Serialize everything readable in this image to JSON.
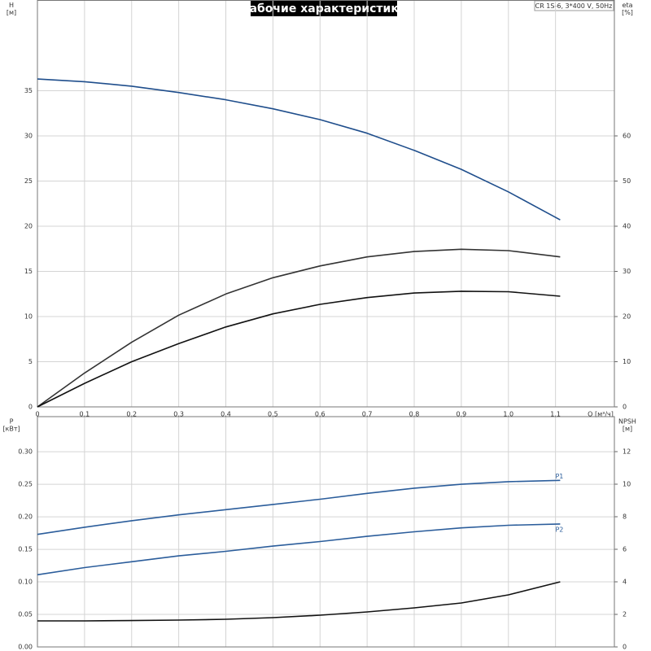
{
  "chart_data": [
    {
      "type": "line",
      "title": "Рабочие характеристики",
      "subtitle": "CR 1S-6, 3*400 V, 50Hz",
      "xlabel": "Q [м³/ч]",
      "ylabel": "H",
      "ylabel_unit": "[м]",
      "y2label": "eta",
      "y2label_unit": "[%]",
      "xlim": [
        0,
        1.225
      ],
      "xticks": [
        {
          "value": 0,
          "label": "0"
        },
        {
          "value": 0.1,
          "label": "0,1"
        },
        {
          "value": 0.2,
          "label": "0,2"
        },
        {
          "value": 0.3,
          "label": "0,3"
        },
        {
          "value": 0.4,
          "label": "0,4"
        },
        {
          "value": 0.5,
          "label": "0,5"
        },
        {
          "value": 0.6,
          "label": "0,6"
        },
        {
          "value": 0.7,
          "label": "0,7"
        },
        {
          "value": 0.8,
          "label": "0,8"
        },
        {
          "value": 0.9,
          "label": "0,9"
        },
        {
          "value": 1.0,
          "label": "1,0"
        },
        {
          "value": 1.1,
          "label": "1,1"
        }
      ],
      "ylim": [
        0,
        45
      ],
      "yticks": [
        0,
        5,
        10,
        15,
        20,
        25,
        30,
        35
      ],
      "y2lim": [
        0,
        90
      ],
      "y2ticks": [
        0,
        10,
        20,
        30,
        40,
        50,
        60
      ],
      "grid": true,
      "series": [
        {
          "color": "#1f4e8c",
          "axis": "y",
          "x": [
            0,
            0.1,
            0.2,
            0.3,
            0.4,
            0.5,
            0.6,
            0.7,
            0.8,
            0.9,
            1.0,
            1.11
          ],
          "values": [
            36.3,
            36.0,
            35.5,
            34.8,
            34.0,
            33.0,
            31.8,
            30.3,
            28.4,
            26.3,
            23.8,
            20.7
          ]
        },
        {
          "color": "#333333",
          "axis": "y2",
          "x": [
            0,
            0.1,
            0.2,
            0.3,
            0.4,
            0.5,
            0.6,
            0.7,
            0.8,
            0.9,
            1.0,
            1.11
          ],
          "values": [
            0,
            7.5,
            14.3,
            20.3,
            25,
            28.6,
            31.2,
            33.2,
            34.4,
            34.9,
            34.6,
            33.2
          ]
        },
        {
          "color": "#111111",
          "axis": "y2",
          "x": [
            0,
            0.1,
            0.2,
            0.3,
            0.4,
            0.5,
            0.6,
            0.7,
            0.8,
            0.9,
            1.0,
            1.11
          ],
          "values": [
            0,
            5.2,
            10,
            14,
            17.7,
            20.6,
            22.7,
            24.2,
            25.2,
            25.6,
            25.5,
            24.5
          ]
        }
      ]
    },
    {
      "type": "line",
      "ylabel": "P",
      "ylabel_unit": "[кВт]",
      "y2label": "NPSH",
      "y2label_unit": "[м]",
      "xlim": [
        0,
        1.225
      ],
      "ylim": [
        0,
        0.354
      ],
      "yticks": [
        {
          "value": 0,
          "label": "0.00"
        },
        {
          "value": 0.05,
          "label": "0.05"
        },
        {
          "value": 0.1,
          "label": "0.10"
        },
        {
          "value": 0.15,
          "label": "0.15"
        },
        {
          "value": 0.2,
          "label": "0.20"
        },
        {
          "value": 0.25,
          "label": "0.25"
        },
        {
          "value": 0.3,
          "label": "0.30"
        }
      ],
      "y2lim": [
        0,
        14.15
      ],
      "y2ticks": [
        0,
        2,
        4,
        6,
        8,
        10,
        12
      ],
      "grid": true,
      "series": [
        {
          "name": "P1",
          "color": "#2b5d9b",
          "axis": "y",
          "x": [
            0,
            0.1,
            0.2,
            0.3,
            0.4,
            0.5,
            0.6,
            0.7,
            0.8,
            0.9,
            1.0,
            1.11
          ],
          "values": [
            0.173,
            0.184,
            0.194,
            0.203,
            0.211,
            0.219,
            0.227,
            0.236,
            0.244,
            0.25,
            0.254,
            0.256
          ]
        },
        {
          "name": "P2",
          "color": "#2b5d9b",
          "axis": "y",
          "x": [
            0,
            0.1,
            0.2,
            0.3,
            0.4,
            0.5,
            0.6,
            0.7,
            0.8,
            0.9,
            1.0,
            1.11
          ],
          "values": [
            0.111,
            0.122,
            0.131,
            0.14,
            0.147,
            0.155,
            0.162,
            0.17,
            0.177,
            0.183,
            0.187,
            0.189
          ]
        },
        {
          "color": "#111111",
          "axis": "y2",
          "x": [
            0,
            0.1,
            0.2,
            0.3,
            0.4,
            0.5,
            0.6,
            0.7,
            0.8,
            0.9,
            1.0,
            1.11
          ],
          "values": [
            1.6,
            1.6,
            1.62,
            1.65,
            1.7,
            1.8,
            1.95,
            2.15,
            2.4,
            2.7,
            3.2,
            4.0
          ]
        }
      ]
    }
  ]
}
